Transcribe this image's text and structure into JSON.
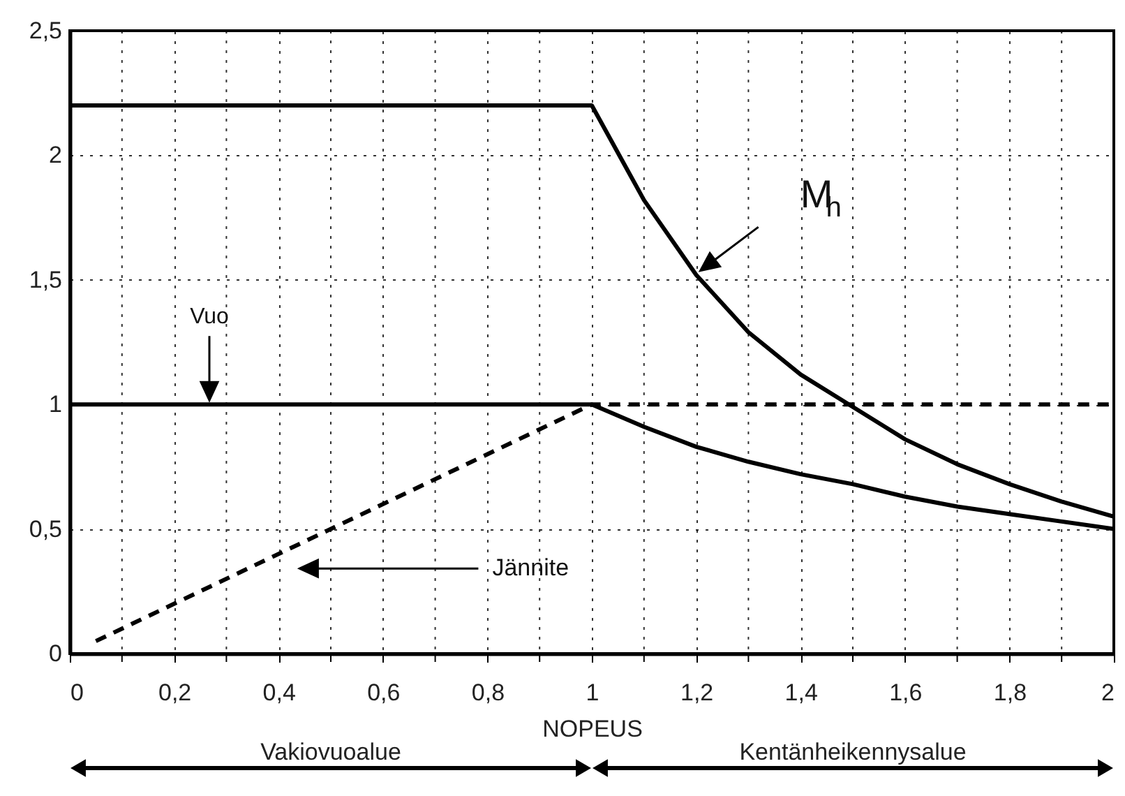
{
  "chart_data": {
    "type": "line",
    "xlabel": "NOPEUS",
    "xlim": [
      0,
      2
    ],
    "ylim": [
      0,
      2.5
    ],
    "xticks": [
      0,
      {
        "value": 0.1,
        "label": null
      },
      {
        "value": 0.2,
        "label": "0,2"
      },
      {
        "value": 0.3,
        "label": null
      },
      {
        "value": 0.4,
        "label": "0,4"
      },
      {
        "value": 0.5,
        "label": null
      },
      {
        "value": 0.6,
        "label": "0,6"
      },
      {
        "value": 0.7,
        "label": null
      },
      {
        "value": 0.8,
        "label": "0,8"
      },
      {
        "value": 0.9,
        "label": null
      },
      1,
      {
        "value": 1.1,
        "label": null
      },
      {
        "value": 1.2,
        "label": "1,2"
      },
      {
        "value": 1.3,
        "label": null
      },
      {
        "value": 1.4,
        "label": "1,4"
      },
      {
        "value": 1.5,
        "label": null
      },
      {
        "value": 1.6,
        "label": "1,6"
      },
      {
        "value": 1.7,
        "label": null
      },
      {
        "value": 1.8,
        "label": "1,8"
      },
      {
        "value": 1.9,
        "label": null
      },
      2
    ],
    "yticks": [
      0,
      {
        "value": 0.5,
        "label": "0,5"
      },
      1,
      {
        "value": 1.5,
        "label": "1,5"
      },
      2,
      {
        "value": 2.5,
        "label": "2,5"
      }
    ],
    "grid": true,
    "line_style": "solid",
    "series": [
      {
        "name": "M$_{h}$",
        "color": "#000000",
        "x": [
          0,
          1,
          1.1,
          1.2,
          1.3,
          1.4,
          1.5,
          1.6,
          1.7,
          1.8,
          1.9,
          2
        ],
        "values": [
          2.2,
          2.2,
          1.82,
          1.52,
          1.29,
          1.12,
          0.99,
          0.86,
          0.76,
          0.68,
          0.61,
          0.55
        ]
      },
      {
        "color": "#000000",
        "x": [
          0,
          1,
          1.1,
          1.2,
          1.3,
          1.4,
          1.5,
          1.6,
          1.7,
          1.8,
          1.9,
          2
        ],
        "values": [
          1,
          1,
          0.91,
          0.83,
          0.77,
          0.72,
          0.68,
          0.63,
          0.59,
          0.56,
          0.53,
          0.5
        ]
      },
      {
        "color": "#000000",
        "line_style": "dashed",
        "x": [
          0.05,
          1,
          2
        ],
        "values": [
          0.05,
          1,
          1
        ]
      }
    ],
    "annotations": [
      "Vuo",
      "Jännite",
      "Vakiovuoalue",
      "Kentänheikennysalue"
    ]
  }
}
